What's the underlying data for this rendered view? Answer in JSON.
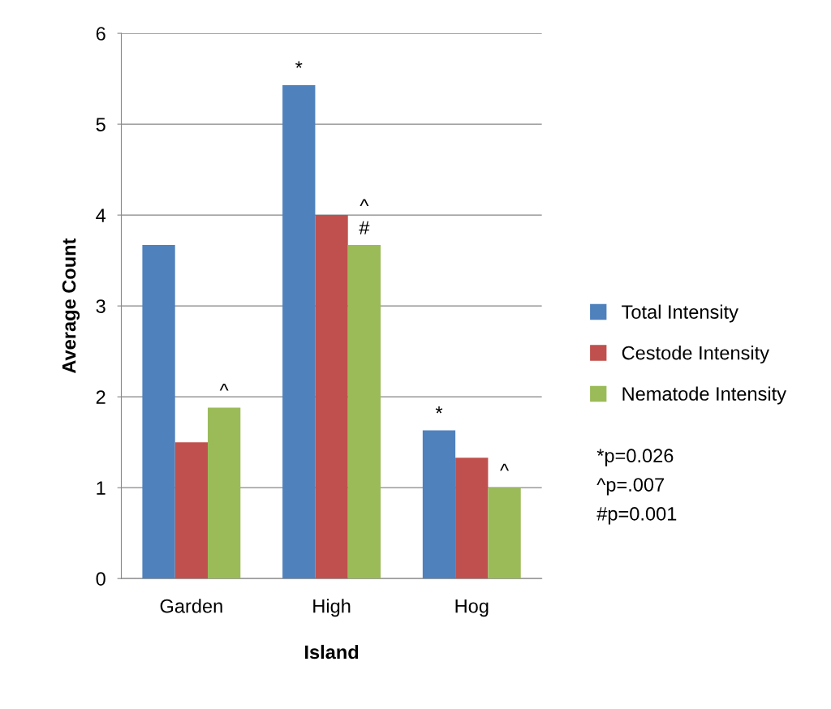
{
  "chart_data": {
    "type": "bar",
    "xlabel": "Island",
    "ylabel": "Average Count",
    "categories": [
      "Garden",
      "High",
      "Hog"
    ],
    "series": [
      {
        "name": "Total Intensity",
        "color": "#4f81bd",
        "values": [
          3.67,
          5.43,
          1.63
        ],
        "value_labels": [
          null,
          "*",
          "*"
        ]
      },
      {
        "name": "Cestode Intensity",
        "color": "#c0504d",
        "values": [
          1.5,
          4.0,
          1.33
        ]
      },
      {
        "name": "Nematode Intensity",
        "color": "#9bbb59",
        "values": [
          1.88,
          3.67,
          1.0
        ],
        "value_labels": [
          "^",
          "^\n#",
          "^"
        ]
      }
    ],
    "ylim": [
      0,
      6
    ],
    "yticks": [
      0,
      1,
      2,
      3,
      4,
      5,
      6
    ],
    "grid": "y",
    "legend": "right",
    "annotations": [
      "*p=0.026",
      "^p=.007",
      "#p=0.001"
    ]
  }
}
